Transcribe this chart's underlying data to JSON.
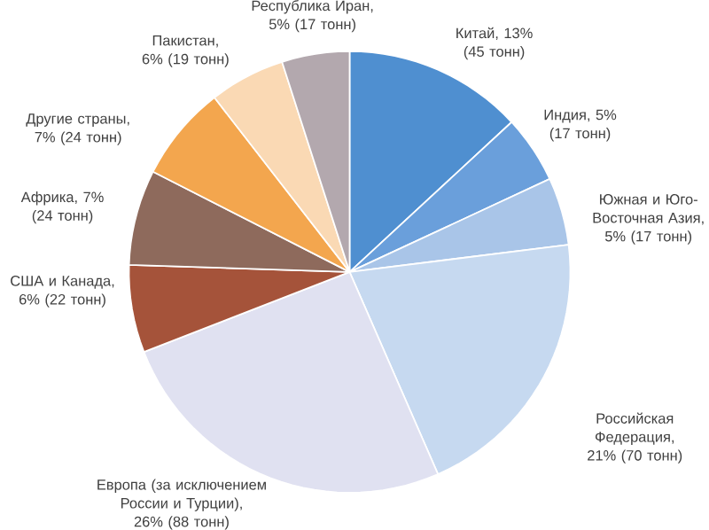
{
  "chart_data": {
    "type": "pie",
    "categories": [
      "Китай",
      "Индия",
      "Южная и Юго-Восточная Азия",
      "Российская Федерация",
      "Европа (за исключением России и Турции)",
      "США и Канада",
      "Африка",
      "Другие страны",
      "Пакистан",
      "Республика Иран"
    ],
    "values": [
      45,
      17,
      17,
      70,
      88,
      22,
      24,
      24,
      19,
      17
    ],
    "value_labels": [
      ", 13% (45 тонн)",
      ", 5% (17 тонн)",
      ", 5% (17 тонн)",
      ", 21% (70 тонн)",
      ", 26% (88 тонн)",
      ", 6% (22 тонн)",
      ", 7% (24 тонн)",
      ", 7% (24 тонн)",
      ", 6% (19 тонн)",
      ", 5% (17 тонн)"
    ],
    "colors": [
      "#4f8fd0",
      "#6a9fdb",
      "#a9c5e8",
      "#c6d9f0",
      "#e0e1f1",
      "#a5533a",
      "#8e6a5c",
      "#f3a64e",
      "#fad9b4",
      "#b3a8ae"
    ]
  }
}
